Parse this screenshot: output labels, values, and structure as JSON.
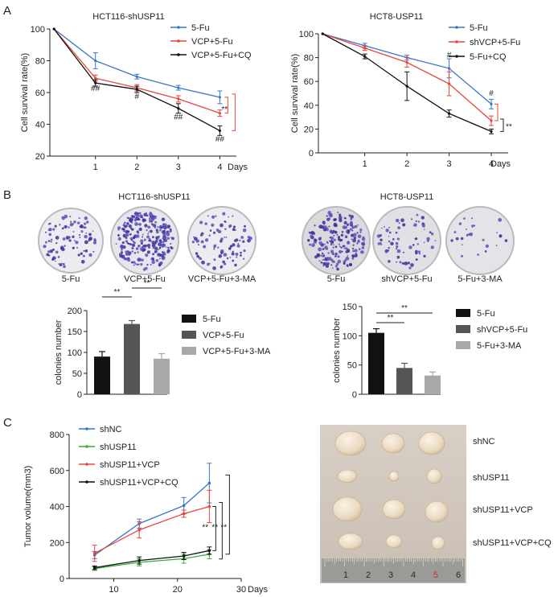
{
  "panel_labels": {
    "a": "A",
    "b": "B",
    "c": "C"
  },
  "chart_data": [
    {
      "id": "a_left",
      "type": "line",
      "title": "HCT116-shUSP11",
      "xlabel": "Days",
      "ylabel": "Cell survival rate(%)",
      "x": [
        0,
        1,
        2,
        3,
        4
      ],
      "x_tick_labels": [
        "",
        "1",
        "2",
        "3",
        "4"
      ],
      "xlim": [
        -0.1,
        4.4
      ],
      "ylim": [
        20,
        100
      ],
      "yticks": [
        20,
        40,
        60,
        80,
        100
      ],
      "series": [
        {
          "name": "5-Fu",
          "color": "#3a76c4",
          "values": [
            100,
            80,
            70,
            63,
            57
          ],
          "errors": [
            0,
            5,
            1.5,
            1.5,
            4
          ]
        },
        {
          "name": "VCP+5-Fu",
          "color": "#e8453c",
          "values": [
            100,
            69,
            63,
            56,
            47
          ],
          "errors": [
            0,
            2,
            2,
            2,
            2
          ]
        },
        {
          "name": "VCP+5-Fu+CQ",
          "color": "#111111",
          "values": [
            100,
            66,
            62,
            50,
            36
          ],
          "errors": [
            0,
            2,
            2,
            3,
            3
          ]
        }
      ],
      "annotations": [
        {
          "x": 1,
          "y": 61,
          "text": "##"
        },
        {
          "x": 2,
          "y": 56,
          "text": "#"
        },
        {
          "x": 3,
          "y": 43,
          "text": "##"
        },
        {
          "x": 4,
          "y": 29,
          "text": "##"
        }
      ],
      "brackets": [
        {
          "text": "**"
        }
      ]
    },
    {
      "id": "a_right",
      "type": "line",
      "title": "HCT8-USP11",
      "xlabel": "Days",
      "ylabel": "Cell survival rate(%)",
      "x": [
        0,
        1,
        2,
        3,
        4
      ],
      "x_tick_labels": [
        "",
        "1",
        "2",
        "3",
        "4"
      ],
      "xlim": [
        -0.1,
        4.4
      ],
      "ylim": [
        0,
        100
      ],
      "yticks": [
        0,
        20,
        40,
        60,
        80,
        100
      ],
      "series": [
        {
          "name": "5-Fu",
          "color": "#3a76c4",
          "values": [
            100,
            90,
            80,
            71,
            41
          ],
          "errors": [
            0,
            2,
            2,
            8,
            4
          ]
        },
        {
          "name": "shVCP+5-Fu",
          "color": "#e8453c",
          "values": [
            100,
            88,
            76,
            58,
            27
          ],
          "errors": [
            0,
            2,
            4,
            10,
            4
          ]
        },
        {
          "name": "5-Fu+CQ",
          "color": "#111111",
          "values": [
            100,
            81,
            56,
            33,
            18
          ],
          "errors": [
            0,
            2,
            12,
            3,
            2
          ]
        }
      ],
      "annotations": [
        {
          "x": 3,
          "y": 80,
          "text": "#"
        },
        {
          "x": 4,
          "y": 48,
          "text": "#"
        }
      ],
      "brackets": [
        {
          "text": "**"
        }
      ]
    },
    {
      "id": "b_left",
      "type": "bar",
      "ylabel": "colonies number",
      "categories": [
        "5-Fu",
        "VCP+5-Fu",
        "VCP+5-Fu+3-MA"
      ],
      "values": [
        90,
        168,
        85
      ],
      "errors": [
        12,
        8,
        12
      ],
      "colors": [
        "#111111",
        "#555555",
        "#a8a8a8"
      ],
      "ylim": [
        0,
        200
      ],
      "yticks": [
        0,
        50,
        100,
        150,
        200
      ],
      "significance": [
        {
          "from": 0,
          "to": 1,
          "text": "**"
        },
        {
          "from": 1,
          "to": 2,
          "text": "**"
        }
      ]
    },
    {
      "id": "b_right",
      "type": "bar",
      "ylabel": "colonies number",
      "categories": [
        "5-Fu",
        "shVCP+5-Fu",
        "5-Fu+3-MA"
      ],
      "values": [
        105,
        45,
        32
      ],
      "errors": [
        7,
        8,
        6
      ],
      "colors": [
        "#111111",
        "#555555",
        "#a8a8a8"
      ],
      "ylim": [
        0,
        150
      ],
      "yticks": [
        0,
        50,
        100,
        150
      ],
      "significance": [
        {
          "from": 0,
          "to": 1,
          "text": "**"
        },
        {
          "from": 0,
          "to": 2,
          "text": "**"
        }
      ]
    },
    {
      "id": "c_left",
      "type": "line",
      "xlabel": "Days",
      "ylabel": "Tumor volume(mm3)",
      "x": [
        7,
        14,
        21,
        25
      ],
      "xlim": [
        3,
        30
      ],
      "xticks": [
        10,
        20,
        30
      ],
      "ylim": [
        0,
        800
      ],
      "yticks": [
        0,
        200,
        400,
        600,
        800
      ],
      "series": [
        {
          "name": "shNC",
          "color": "#3a76c4",
          "values": [
            130,
            305,
            405,
            530
          ],
          "errors": [
            20,
            25,
            45,
            110
          ]
        },
        {
          "name": "shUSP11",
          "color": "#3aaa3a",
          "values": [
            55,
            90,
            110,
            135
          ],
          "errors": [
            10,
            20,
            25,
            25
          ]
        },
        {
          "name": "shUSP11+VCP",
          "color": "#e8453c",
          "values": [
            140,
            270,
            360,
            400
          ],
          "errors": [
            45,
            45,
            20,
            90
          ]
        },
        {
          "name": "shUSP11+VCP+CQ",
          "color": "#111111",
          "values": [
            60,
            100,
            125,
            155
          ],
          "errors": [
            10,
            20,
            20,
            20
          ]
        }
      ],
      "brackets": [
        {
          "text": "**"
        },
        {
          "text": "**"
        },
        {
          "text": "**"
        }
      ]
    }
  ],
  "panel_a": {
    "left_title": "HCT116-shUSP11",
    "right_title": "HCT8-USP11",
    "days_label": "Days"
  },
  "panel_b": {
    "left_title": "HCT116-shUSP11",
    "right_title": "HCT8-USP11",
    "left_dishes": [
      "5-Fu",
      "VCP+5-Fu",
      "VCP+5-Fu+3-MA"
    ],
    "right_dishes": [
      "5-Fu",
      "shVCP+5-Fu",
      "5-Fu+3-MA"
    ]
  },
  "panel_c": {
    "days_label": "Days",
    "tumor_labels": [
      "shNC",
      "shUSP11",
      "shUSP11+VCP",
      "shUSP11+VCP+CQ"
    ],
    "ruler_numbers": [
      "1",
      "2",
      "3",
      "4",
      "5",
      "6"
    ]
  }
}
